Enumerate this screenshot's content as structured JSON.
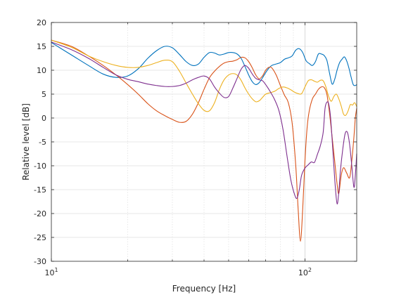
{
  "chart_data": {
    "type": "line",
    "xlabel": "Frequency [Hz]",
    "ylabel": "Relative level [dB]",
    "xscale": "log",
    "xlim": [
      10,
      160
    ],
    "ylim": [
      -30,
      20
    ],
    "grid": true,
    "legend": "none",
    "yticks": [
      "-30",
      "-25",
      "-20",
      "-15",
      "-10",
      "-5",
      "0",
      "5",
      "10",
      "15",
      "20"
    ],
    "xticks": [
      {
        "value": 10,
        "base": "10",
        "exp": "1"
      },
      {
        "value": 100,
        "base": "10",
        "exp": "2"
      }
    ],
    "series": [
      {
        "color": "#0072BD",
        "points": [
          [
            10,
            15.8
          ],
          [
            12,
            13.2
          ],
          [
            14,
            11.0
          ],
          [
            16,
            9.2
          ],
          [
            18,
            8.5
          ],
          [
            20,
            8.8
          ],
          [
            22,
            10.3
          ],
          [
            24,
            12.5
          ],
          [
            26,
            14.1
          ],
          [
            28,
            15.0
          ],
          [
            30,
            14.7
          ],
          [
            32,
            13.3
          ],
          [
            34,
            11.8
          ],
          [
            36,
            11.0
          ],
          [
            38,
            11.3
          ],
          [
            40,
            12.7
          ],
          [
            42,
            13.7
          ],
          [
            44,
            13.6
          ],
          [
            46,
            13.2
          ],
          [
            48,
            13.4
          ],
          [
            50,
            13.7
          ],
          [
            52,
            13.7
          ],
          [
            54,
            13.4
          ],
          [
            56,
            12.5
          ],
          [
            58,
            10.8
          ],
          [
            60,
            9.0
          ],
          [
            62,
            7.6
          ],
          [
            64,
            7.0
          ],
          [
            66,
            7.4
          ],
          [
            68,
            8.4
          ],
          [
            70,
            9.5
          ],
          [
            72,
            10.4
          ],
          [
            74,
            11.0
          ],
          [
            77,
            11.3
          ],
          [
            80,
            11.6
          ],
          [
            83,
            12.3
          ],
          [
            86,
            12.6
          ],
          [
            89,
            13.0
          ],
          [
            92,
            14.2
          ],
          [
            95,
            14.5
          ],
          [
            98,
            13.7
          ],
          [
            101,
            12.0
          ],
          [
            104,
            11.4
          ],
          [
            107,
            11.0
          ],
          [
            110,
            11.8
          ],
          [
            113,
            13.4
          ],
          [
            116,
            13.4
          ],
          [
            119,
            13.1
          ],
          [
            122,
            12.1
          ],
          [
            125,
            9.4
          ],
          [
            128,
            7.1
          ],
          [
            131,
            8.1
          ],
          [
            134,
            10.1
          ],
          [
            137,
            11.6
          ],
          [
            140,
            12.3
          ],
          [
            143,
            12.8
          ],
          [
            146,
            12.0
          ],
          [
            149,
            10.5
          ],
          [
            152,
            8.6
          ],
          [
            155,
            7.0
          ],
          [
            158,
            6.8
          ],
          [
            160,
            7.0
          ]
        ]
      },
      {
        "color": "#D95319",
        "points": [
          [
            10,
            16.3
          ],
          [
            12,
            15.0
          ],
          [
            14,
            13.0
          ],
          [
            16,
            11.0
          ],
          [
            18,
            9.0
          ],
          [
            20,
            7.0
          ],
          [
            22,
            5.0
          ],
          [
            24,
            3.0
          ],
          [
            26,
            1.5
          ],
          [
            28,
            0.5
          ],
          [
            30,
            -0.3
          ],
          [
            32,
            -0.9
          ],
          [
            34,
            -0.7
          ],
          [
            36,
            0.8
          ],
          [
            38,
            3.2
          ],
          [
            40,
            6.0
          ],
          [
            42,
            8.4
          ],
          [
            44,
            9.8
          ],
          [
            46,
            10.8
          ],
          [
            48,
            11.5
          ],
          [
            50,
            11.8
          ],
          [
            52,
            11.9
          ],
          [
            54,
            12.2
          ],
          [
            56,
            12.7
          ],
          [
            58,
            12.6
          ],
          [
            60,
            11.8
          ],
          [
            62,
            10.5
          ],
          [
            64,
            9.0
          ],
          [
            66,
            8.2
          ],
          [
            68,
            8.8
          ],
          [
            70,
            10.0
          ],
          [
            72,
            10.6
          ],
          [
            74,
            10.5
          ],
          [
            77,
            9.0
          ],
          [
            80,
            6.8
          ],
          [
            83,
            4.8
          ],
          [
            86,
            3.2
          ],
          [
            89,
            -1.0
          ],
          [
            92,
            -10.0
          ],
          [
            94,
            -19.0
          ],
          [
            96,
            -25.8
          ],
          [
            98,
            -19.0
          ],
          [
            100,
            -9.0
          ],
          [
            102,
            -2.0
          ],
          [
            104,
            1.5
          ],
          [
            107,
            4.0
          ],
          [
            110,
            5.0
          ],
          [
            113,
            6.0
          ],
          [
            116,
            6.5
          ],
          [
            119,
            6.4
          ],
          [
            122,
            5.0
          ],
          [
            125,
            1.0
          ],
          [
            128,
            -4.0
          ],
          [
            131,
            -9.0
          ],
          [
            134,
            -14.0
          ],
          [
            136,
            -15.8
          ],
          [
            139,
            -12.0
          ],
          [
            142,
            -10.4
          ],
          [
            146,
            -11.5
          ],
          [
            150,
            -12.5
          ],
          [
            153,
            -9.0
          ],
          [
            156,
            -4.0
          ],
          [
            158,
            0.0
          ],
          [
            160,
            2.0
          ]
        ]
      },
      {
        "color": "#EDB120",
        "points": [
          [
            10,
            16.3
          ],
          [
            12,
            14.8
          ],
          [
            14,
            13.0
          ],
          [
            16,
            11.8
          ],
          [
            18,
            11.0
          ],
          [
            20,
            10.6
          ],
          [
            22,
            10.6
          ],
          [
            24,
            11.0
          ],
          [
            26,
            11.6
          ],
          [
            28,
            12.1
          ],
          [
            30,
            11.8
          ],
          [
            32,
            9.8
          ],
          [
            34,
            7.3
          ],
          [
            36,
            5.0
          ],
          [
            38,
            3.0
          ],
          [
            40,
            1.6
          ],
          [
            42,
            1.5
          ],
          [
            44,
            3.2
          ],
          [
            46,
            6.0
          ],
          [
            48,
            8.0
          ],
          [
            50,
            9.0
          ],
          [
            52,
            9.3
          ],
          [
            54,
            9.0
          ],
          [
            56,
            7.9
          ],
          [
            58,
            6.3
          ],
          [
            60,
            5.0
          ],
          [
            62,
            4.0
          ],
          [
            64,
            3.4
          ],
          [
            66,
            3.6
          ],
          [
            68,
            4.3
          ],
          [
            70,
            5.0
          ],
          [
            73,
            5.3
          ],
          [
            76,
            5.6
          ],
          [
            79,
            6.2
          ],
          [
            82,
            6.5
          ],
          [
            85,
            6.3
          ],
          [
            88,
            5.9
          ],
          [
            91,
            5.4
          ],
          [
            94,
            5.1
          ],
          [
            97,
            5.1
          ],
          [
            100,
            6.5
          ],
          [
            103,
            7.8
          ],
          [
            106,
            8.0
          ],
          [
            109,
            7.7
          ],
          [
            112,
            7.5
          ],
          [
            115,
            7.9
          ],
          [
            118,
            7.8
          ],
          [
            121,
            6.5
          ],
          [
            124,
            4.5
          ],
          [
            127,
            3.5
          ],
          [
            130,
            4.5
          ],
          [
            133,
            5.0
          ],
          [
            136,
            4.0
          ],
          [
            139,
            2.5
          ],
          [
            142,
            0.8
          ],
          [
            145,
            0.6
          ],
          [
            148,
            1.5
          ],
          [
            151,
            2.8
          ],
          [
            154,
            2.7
          ],
          [
            157,
            3.2
          ],
          [
            160,
            2.4
          ]
        ]
      },
      {
        "color": "#7E2F8E",
        "points": [
          [
            10,
            15.9
          ],
          [
            12,
            14.3
          ],
          [
            14,
            12.5
          ],
          [
            16,
            10.6
          ],
          [
            18,
            9.0
          ],
          [
            20,
            8.1
          ],
          [
            22,
            7.6
          ],
          [
            24,
            7.1
          ],
          [
            26,
            6.8
          ],
          [
            28,
            6.6
          ],
          [
            30,
            6.6
          ],
          [
            32,
            6.8
          ],
          [
            34,
            7.3
          ],
          [
            36,
            8.0
          ],
          [
            38,
            8.5
          ],
          [
            40,
            8.8
          ],
          [
            42,
            8.2
          ],
          [
            44,
            6.5
          ],
          [
            46,
            5.2
          ],
          [
            48,
            4.3
          ],
          [
            50,
            4.5
          ],
          [
            52,
            6.3
          ],
          [
            54,
            8.3
          ],
          [
            56,
            10.2
          ],
          [
            58,
            11.0
          ],
          [
            60,
            10.4
          ],
          [
            62,
            9.2
          ],
          [
            64,
            8.3
          ],
          [
            66,
            8.0
          ],
          [
            68,
            7.8
          ],
          [
            70,
            7.0
          ],
          [
            73,
            5.5
          ],
          [
            76,
            3.8
          ],
          [
            79,
            1.5
          ],
          [
            82,
            -2.5
          ],
          [
            85,
            -8.0
          ],
          [
            88,
            -13.0
          ],
          [
            91,
            -16.0
          ],
          [
            93,
            -16.8
          ],
          [
            95,
            -15.0
          ],
          [
            97,
            -12.0
          ],
          [
            100,
            -10.5
          ],
          [
            103,
            -9.8
          ],
          [
            106,
            -9.2
          ],
          [
            109,
            -9.3
          ],
          [
            112,
            -7.6
          ],
          [
            115,
            -5.8
          ],
          [
            118,
            -3.0
          ],
          [
            120,
            2.0
          ],
          [
            122,
            3.3
          ],
          [
            124,
            3.0
          ],
          [
            126,
            0.5
          ],
          [
            128,
            -4.5
          ],
          [
            130,
            -10.0
          ],
          [
            132,
            -15.0
          ],
          [
            134,
            -18.0
          ],
          [
            136,
            -15.5
          ],
          [
            138,
            -11.0
          ],
          [
            141,
            -6.5
          ],
          [
            144,
            -3.3
          ],
          [
            147,
            -3.0
          ],
          [
            150,
            -5.5
          ],
          [
            153,
            -10.0
          ],
          [
            156,
            -14.5
          ],
          [
            158,
            -12.0
          ],
          [
            160,
            -7.5
          ]
        ]
      }
    ]
  }
}
